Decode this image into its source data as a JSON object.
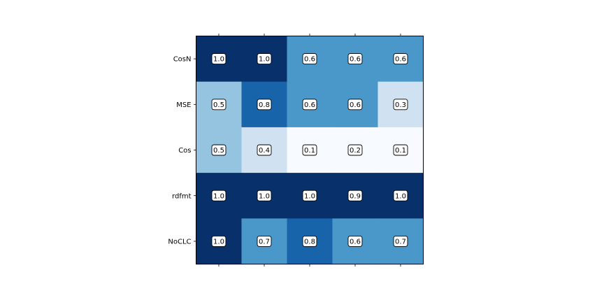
{
  "chart_data": {
    "type": "heatmap",
    "title": "",
    "xlabel": "",
    "ylabel": "",
    "x_tick_labels": [],
    "rows": [
      "CosN",
      "MSE",
      "Cos",
      "rdfmt",
      "NoCLC"
    ],
    "values": [
      [
        1.0,
        1.0,
        0.6,
        0.6,
        0.6
      ],
      [
        0.5,
        0.8,
        0.6,
        0.6,
        0.3
      ],
      [
        0.5,
        0.4,
        0.1,
        0.2,
        0.1
      ],
      [
        1.0,
        1.0,
        1.0,
        0.9,
        1.0
      ],
      [
        1.0,
        0.7,
        0.8,
        0.6,
        0.7
      ]
    ],
    "labels": [
      [
        "1.0",
        "1.0",
        "0.6",
        "0.6",
        "0.6"
      ],
      [
        "0.5",
        "0.8",
        "0.6",
        "0.6",
        "0.3"
      ],
      [
        "0.5",
        "0.4",
        "0.1",
        "0.2",
        "0.1"
      ],
      [
        "1.0",
        "1.0",
        "1.0",
        "0.9",
        "1.0"
      ],
      [
        "1.0",
        "0.7",
        "0.8",
        "0.6",
        "0.7"
      ]
    ],
    "cell_colors": [
      [
        "#08306b",
        "#08306b",
        "#4a98c9",
        "#4a98c9",
        "#4a98c9"
      ],
      [
        "#94c4df",
        "#1764ab",
        "#4a98c9",
        "#4a98c9",
        "#d0e1f2"
      ],
      [
        "#94c4df",
        "#d0e1f2",
        "#f7fbff",
        "#f7fbff",
        "#f7fbff"
      ],
      [
        "#08306b",
        "#08306b",
        "#08306b",
        "#08306b",
        "#08306b"
      ],
      [
        "#08306b",
        "#4a98c9",
        "#1764ab",
        "#4a98c9",
        "#4a98c9"
      ]
    ],
    "colormap": "Blues",
    "grid": false
  }
}
